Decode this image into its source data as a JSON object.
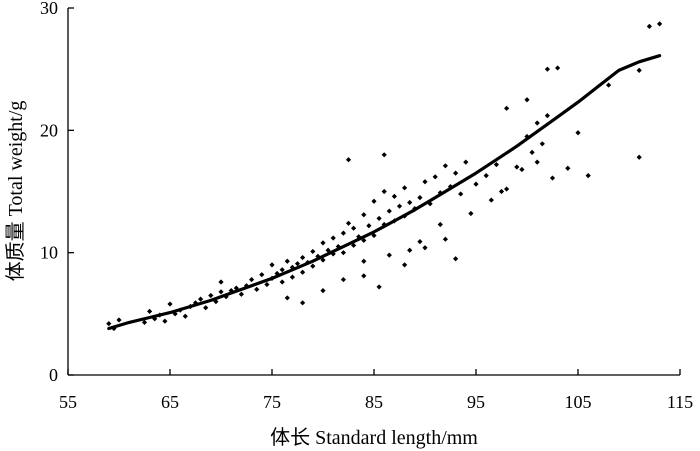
{
  "chart_data": {
    "type": "scatter",
    "title": "",
    "xlabel": "体长 Standard length/mm",
    "ylabel": "体质量 Total weight/g",
    "xlim": [
      55,
      115
    ],
    "ylim": [
      0,
      30
    ],
    "xticks": [
      55,
      65,
      75,
      85,
      95,
      105,
      115
    ],
    "yticks": [
      0,
      10,
      20,
      30
    ],
    "grid": false,
    "series": [
      {
        "type": "scatter",
        "marker": "diamond",
        "x": [
          59.0,
          59.5,
          60.0,
          62.5,
          63.0,
          63.5,
          64.0,
          64.5,
          65.0,
          65.5,
          66.0,
          66.5,
          67.0,
          67.5,
          68.0,
          68.5,
          69.0,
          69.5,
          70.0,
          70.0,
          70.5,
          71.0,
          71.5,
          72.0,
          72.5,
          73.0,
          73.5,
          74.0,
          74.5,
          75.0,
          75.0,
          75.5,
          76.0,
          76.0,
          76.5,
          77.0,
          77.0,
          77.5,
          78.0,
          78.0,
          78.5,
          79.0,
          79.0,
          79.5,
          80.0,
          80.0,
          80.5,
          81.0,
          81.0,
          81.5,
          82.0,
          82.0,
          82.5,
          83.0,
          83.0,
          83.5,
          84.0,
          84.0,
          84.5,
          85.0,
          85.0,
          85.5,
          86.0,
          86.0,
          86.5,
          87.0,
          87.0,
          87.5,
          88.0,
          88.0,
          88.5,
          89.0,
          89.5,
          90.0,
          90.5,
          91.0,
          91.5,
          92.0,
          92.5,
          93.0,
          93.5,
          94.0,
          95.0,
          96.0,
          97.0,
          98.0,
          98.0,
          99.0,
          100.0,
          100.0,
          100.5,
          101.0,
          101.0,
          101.5,
          102.0,
          102.0,
          102.5,
          103.0,
          105.0,
          106.0,
          108.0,
          111.0,
          111.0,
          112.0,
          113.0,
          82.5,
          84.0,
          88.0,
          85.5,
          86.0,
          90.0,
          92.0,
          93.0,
          76.5,
          78.0,
          80.0,
          82.0,
          84.0,
          86.5,
          88.5,
          89.5,
          91.5,
          94.5,
          96.5,
          97.5,
          99.5,
          104.0
        ],
        "y": [
          4.2,
          3.8,
          4.5,
          4.3,
          5.2,
          4.6,
          4.9,
          4.4,
          5.8,
          5.0,
          5.3,
          4.8,
          5.6,
          5.9,
          6.2,
          5.5,
          6.5,
          6.0,
          6.8,
          7.6,
          6.4,
          6.9,
          7.1,
          6.6,
          7.3,
          7.8,
          7.0,
          8.2,
          7.4,
          9.0,
          7.9,
          8.3,
          8.6,
          7.6,
          9.3,
          8.8,
          8.0,
          9.1,
          9.6,
          8.4,
          9.2,
          10.1,
          8.9,
          9.7,
          10.8,
          9.4,
          10.2,
          11.2,
          9.9,
          10.5,
          11.6,
          10.0,
          12.4,
          12.0,
          10.6,
          11.3,
          13.1,
          11.0,
          12.2,
          14.2,
          11.4,
          12.8,
          15.0,
          12.3,
          13.4,
          14.6,
          12.6,
          13.8,
          15.3,
          13.0,
          14.1,
          13.6,
          14.5,
          15.8,
          14.0,
          16.2,
          14.9,
          17.1,
          15.4,
          16.5,
          14.8,
          17.4,
          15.6,
          16.3,
          17.2,
          15.2,
          21.8,
          17.0,
          22.5,
          19.5,
          18.2,
          20.6,
          17.4,
          18.9,
          25.0,
          21.2,
          16.1,
          25.1,
          19.8,
          16.3,
          23.7,
          24.9,
          17.8,
          28.5,
          28.7,
          17.6,
          8.1,
          9.0,
          7.2,
          18.0,
          10.4,
          11.1,
          9.5,
          6.3,
          5.9,
          6.9,
          7.8,
          9.3,
          9.8,
          10.2,
          10.9,
          12.3,
          13.2,
          14.3,
          15.0,
          16.8,
          16.9
        ]
      },
      {
        "type": "line",
        "x": [
          59,
          61,
          63,
          65,
          67,
          69,
          71,
          73,
          75,
          77,
          79,
          81,
          83,
          85,
          87,
          89,
          91,
          93,
          95,
          97,
          99,
          101,
          103,
          105,
          107,
          109,
          111,
          113
        ],
        "y": [
          3.8,
          4.3,
          4.7,
          5.1,
          5.6,
          6.1,
          6.7,
          7.3,
          7.9,
          8.6,
          9.3,
          10.1,
          10.9,
          11.7,
          12.6,
          13.5,
          14.5,
          15.5,
          16.5,
          17.6,
          18.7,
          19.9,
          21.1,
          22.3,
          23.6,
          24.9,
          25.6,
          26.1
        ]
      }
    ]
  }
}
